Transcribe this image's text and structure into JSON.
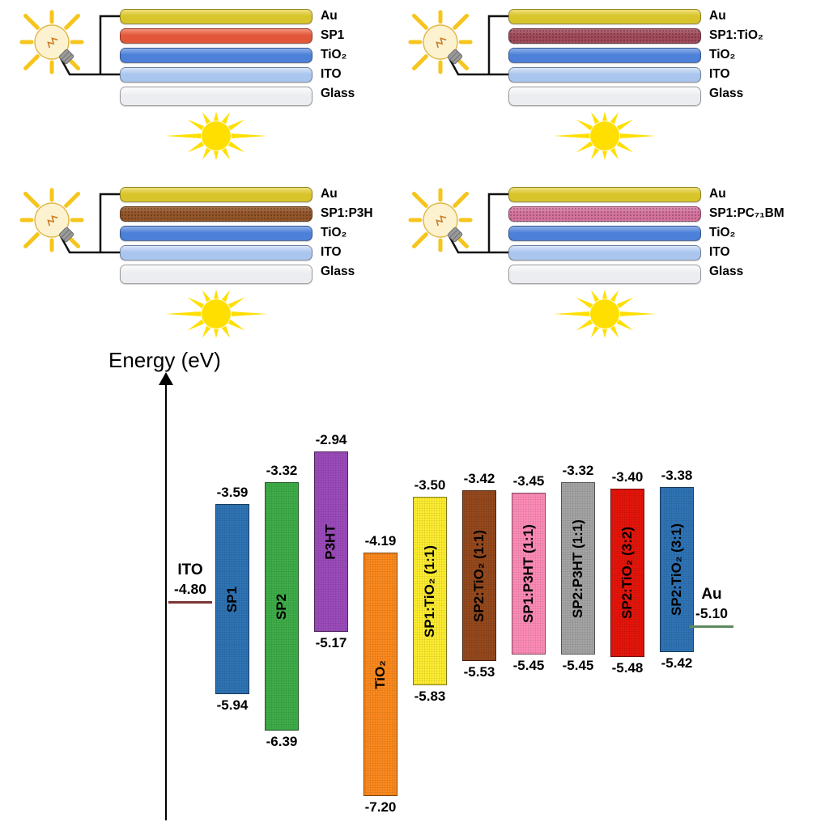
{
  "devices": [
    {
      "name": "device-sp1",
      "layers": [
        {
          "label": "Au",
          "color": "#d8c52b",
          "light": "#efe07d",
          "speckled": false
        },
        {
          "label": "SP1",
          "color": "#e2573a",
          "light": "#f2927a",
          "speckled": false
        },
        {
          "label": "TiO₂",
          "color": "#4d80d8",
          "light": "#8fb0ea",
          "speckled": false
        },
        {
          "label": "ITO",
          "color": "#abc6ee",
          "light": "#d8e5f8",
          "speckled": false
        },
        {
          "label": "Glass",
          "color": "#ebedf0",
          "light": "#fbfcfd",
          "speckled": false
        }
      ]
    },
    {
      "name": "device-sp1-tio2",
      "layers": [
        {
          "label": "Au",
          "color": "#d8c52b",
          "light": "#efe07d",
          "speckled": false
        },
        {
          "label": "SP1:TiO₂",
          "color": "#a04b5c",
          "light": "#b56a78",
          "speckled": true
        },
        {
          "label": "TiO₂",
          "color": "#4d80d8",
          "light": "#8fb0ea",
          "speckled": false
        },
        {
          "label": "ITO",
          "color": "#abc6ee",
          "light": "#d8e5f8",
          "speckled": false
        },
        {
          "label": "Glass",
          "color": "#ebedf0",
          "light": "#fbfcfd",
          "speckled": false
        }
      ]
    },
    {
      "name": "device-sp1-p3h",
      "layers": [
        {
          "label": "Au",
          "color": "#d8c52b",
          "light": "#efe07d",
          "speckled": false
        },
        {
          "label": "SP1:P3H",
          "color": "#93552a",
          "light": "#a8714b",
          "speckled": true
        },
        {
          "label": "TiO₂",
          "color": "#4d80d8",
          "light": "#8fb0ea",
          "speckled": false
        },
        {
          "label": "ITO",
          "color": "#abc6ee",
          "light": "#d8e5f8",
          "speckled": false
        },
        {
          "label": "Glass",
          "color": "#ebedf0",
          "light": "#fbfcfd",
          "speckled": false
        }
      ]
    },
    {
      "name": "device-sp1-pc71bm",
      "layers": [
        {
          "label": "Au",
          "color": "#d8c52b",
          "light": "#efe07d",
          "speckled": false
        },
        {
          "label": "SP1:PC₇₁BM",
          "color": "#d4729c",
          "light": "#e090b4",
          "speckled": true
        },
        {
          "label": "TiO₂",
          "color": "#4d80d8",
          "light": "#8fb0ea",
          "speckled": false
        },
        {
          "label": "ITO",
          "color": "#abc6ee",
          "light": "#d8e5f8",
          "speckled": false
        },
        {
          "label": "Glass",
          "color": "#ebedf0",
          "light": "#fbfcfd",
          "speckled": false
        }
      ]
    }
  ],
  "chart_data": {
    "type": "energy-level-diagram",
    "ylabel": "Energy (eV)",
    "unit": "eV",
    "electrodes": [
      {
        "name": "ITO",
        "level": -4.8,
        "line_color": "#7d3535"
      },
      {
        "name": "Au",
        "level": -5.1,
        "line_color": "#5f8a5f"
      }
    ],
    "bars": [
      {
        "name": "SP1",
        "lumo": -3.59,
        "homo": -5.94,
        "color": "#2f74b5"
      },
      {
        "name": "SP2",
        "lumo": -3.32,
        "homo": -6.39,
        "color": "#3fae49"
      },
      {
        "name": "P3HT",
        "lumo": -2.94,
        "homo": -5.17,
        "color": "#9c4bbb"
      },
      {
        "name": "TiO₂",
        "lumo": -4.19,
        "homo": -7.2,
        "color": "#fd8a1e"
      },
      {
        "name": "SP1:TiO₂ (1:1)",
        "lumo": -3.5,
        "homo": -5.83,
        "color": "#ffee30"
      },
      {
        "name": "SP2:TiO₂ (1:1)",
        "lumo": -3.42,
        "homo": -5.53,
        "color": "#96491d"
      },
      {
        "name": "SP1:P3HT (1:1)",
        "lumo": -3.45,
        "homo": -5.45,
        "color": "#ff8cb8"
      },
      {
        "name": "SP2:P3HT (1:1)",
        "lumo": -3.32,
        "homo": -5.45,
        "color": "#a5a5a5"
      },
      {
        "name": "SP2:TiO₂ (3:2)",
        "lumo": -3.4,
        "homo": -5.48,
        "color": "#e6150b"
      },
      {
        "name": "SP2:TiO₂ (3:1)",
        "lumo": -3.38,
        "homo": -5.42,
        "color": "#2f74b5"
      }
    ]
  }
}
